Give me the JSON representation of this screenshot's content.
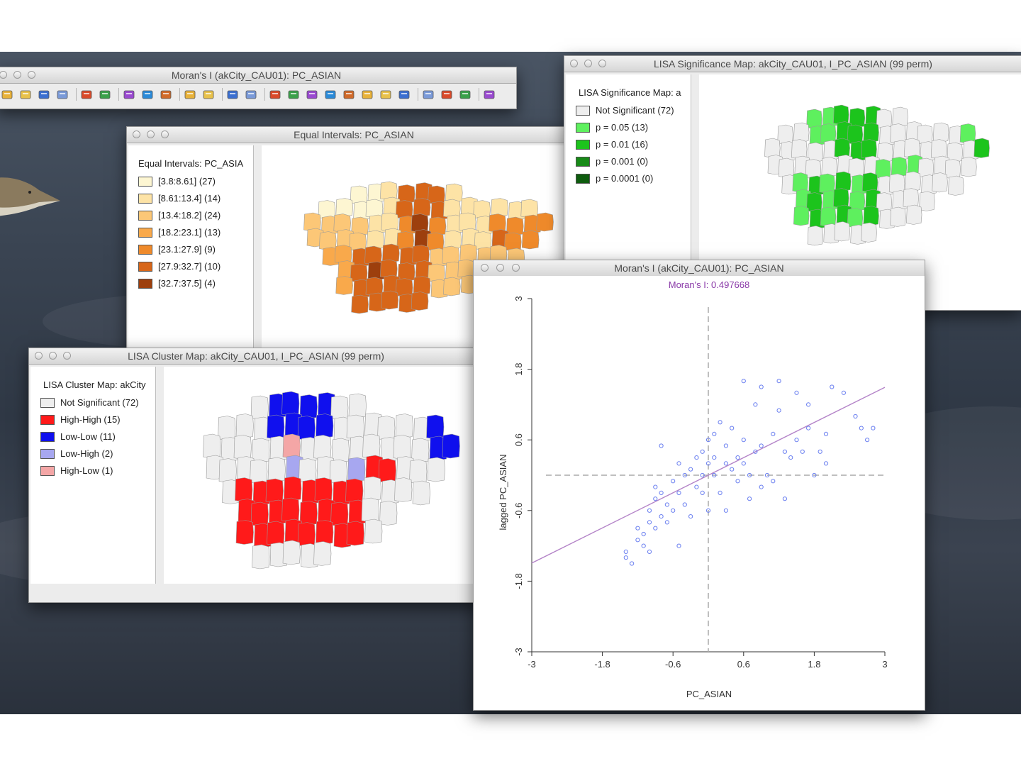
{
  "windows": {
    "toolbar_window": {
      "title": "Moran's I (akCity_CAU01): PC_ASIAN"
    },
    "equal_intervals": {
      "title": "Equal Intervals: PC_ASIAN",
      "legend_title": "Equal Intervals: PC_ASIA",
      "legend": [
        {
          "label": "[3.8:8.61] (27)",
          "color": "#fdf6d2"
        },
        {
          "label": "[8.61:13.4] (14)",
          "color": "#fde3a6"
        },
        {
          "label": "[13.4:18.2] (24)",
          "color": "#fcc777"
        },
        {
          "label": "[18.2:23.1] (13)",
          "color": "#f9a94b"
        },
        {
          "label": "[23.1:27.9] (9)",
          "color": "#ef8a2b"
        },
        {
          "label": "[27.9:32.7] (10)",
          "color": "#d76619"
        },
        {
          "label": "[32.7:37.5] (4)",
          "color": "#9d3f0d"
        }
      ]
    },
    "significance_map": {
      "title": "LISA Significance Map: akCity_CAU01, I_PC_ASIAN (99 perm)",
      "legend_title": "LISA Significance Map: a",
      "legend": [
        {
          "label": "Not Significant (72)",
          "color": "#eeeeee"
        },
        {
          "label": "p = 0.05 (13)",
          "color": "#5ef05e"
        },
        {
          "label": "p = 0.01 (16)",
          "color": "#1cc41c"
        },
        {
          "label": "p = 0.001 (0)",
          "color": "#178a17"
        },
        {
          "label": "p = 0.0001 (0)",
          "color": "#0e5c0e"
        }
      ]
    },
    "cluster_map": {
      "title": "LISA Cluster Map: akCity_CAU01, I_PC_ASIAN (99 perm)",
      "legend_title": "LISA Cluster Map: akCity",
      "legend": [
        {
          "label": "Not Significant (72)",
          "color": "#eeeeee"
        },
        {
          "label": "High-High (15)",
          "color": "#ff1a1a"
        },
        {
          "label": "Low-Low (11)",
          "color": "#1010ee"
        },
        {
          "label": "Low-High (2)",
          "color": "#a7a7f0"
        },
        {
          "label": "High-Low (1)",
          "color": "#f4a6a6"
        }
      ]
    },
    "moran_plot": {
      "title": "Moran's I (akCity_CAU01): PC_ASIAN",
      "subtitle": "Moran's I: 0.497668",
      "xlabel": "PC_ASIAN",
      "ylabel": "lagged PC_ASIAN"
    }
  },
  "toolbar_icons": [
    "open-icon",
    "folder-icon",
    "folder-2-icon",
    "save-icon",
    "table-icon",
    "table-edit-icon",
    "weights-create-icon",
    "weights-open-icon",
    "weights-edit-icon",
    "clock-icon",
    "window-icon",
    "map-icon",
    "choropleth-icon",
    "points-icon",
    "histogram-icon",
    "boxplot-icon",
    "scatter-icon",
    "bubble-icon",
    "pie-icon",
    "pcp-icon",
    "3d-icon",
    "moran-icon",
    "lisa-icon",
    "cluster-icon",
    "regression-icon"
  ],
  "chart_data": {
    "type": "scatter",
    "title": "Moran's I: 0.497668",
    "xlabel": "PC_ASIAN",
    "ylabel": "lagged PC_ASIAN",
    "xlim": [
      -3,
      3
    ],
    "ylim": [
      -3,
      3
    ],
    "xticks": [
      "-3",
      "-1.8",
      "-0.6",
      "0.6",
      "1.8",
      "3"
    ],
    "yticks": [
      "-3",
      "-1.8",
      "-0.6",
      "0.6",
      "1.8",
      "3"
    ],
    "regression_slope": 0.497668,
    "colors": {
      "points": "#6a7ff0",
      "line": "#b484c8",
      "axes": "#aaaaaa"
    },
    "points": [
      [
        -1.4,
        -1.3
      ],
      [
        -1.4,
        -1.4
      ],
      [
        -1.3,
        -1.5
      ],
      [
        -1.2,
        -1.1
      ],
      [
        -1.2,
        -0.9
      ],
      [
        -1.1,
        -1.2
      ],
      [
        -1.1,
        -1.0
      ],
      [
        -1.0,
        -0.8
      ],
      [
        -1.0,
        -1.3
      ],
      [
        -1.0,
        -0.6
      ],
      [
        -0.9,
        -0.9
      ],
      [
        -0.9,
        -0.4
      ],
      [
        -0.9,
        -0.2
      ],
      [
        -0.8,
        -0.7
      ],
      [
        -0.8,
        -0.3
      ],
      [
        -0.8,
        0.5
      ],
      [
        -0.7,
        -0.5
      ],
      [
        -0.7,
        -0.8
      ],
      [
        -0.6,
        -0.6
      ],
      [
        -0.6,
        -0.1
      ],
      [
        -0.5,
        -0.3
      ],
      [
        -0.5,
        0.2
      ],
      [
        -0.5,
        -1.2
      ],
      [
        -0.4,
        0.0
      ],
      [
        -0.4,
        -0.5
      ],
      [
        -0.3,
        0.1
      ],
      [
        -0.3,
        -0.7
      ],
      [
        -0.2,
        0.3
      ],
      [
        -0.2,
        -0.2
      ],
      [
        -0.1,
        0.4
      ],
      [
        -0.1,
        0.0
      ],
      [
        -0.1,
        -0.3
      ],
      [
        0.0,
        0.2
      ],
      [
        0.0,
        0.6
      ],
      [
        0.0,
        -0.6
      ],
      [
        0.1,
        0.3
      ],
      [
        0.1,
        0.0
      ],
      [
        0.1,
        0.7
      ],
      [
        0.2,
        -0.3
      ],
      [
        0.3,
        0.5
      ],
      [
        0.3,
        0.2
      ],
      [
        0.3,
        -0.6
      ],
      [
        0.4,
        0.1
      ],
      [
        0.4,
        0.8
      ],
      [
        0.5,
        0.3
      ],
      [
        0.5,
        -0.1
      ],
      [
        0.6,
        0.2
      ],
      [
        0.6,
        0.6
      ],
      [
        0.7,
        0.0
      ],
      [
        0.7,
        -0.4
      ],
      [
        0.8,
        1.2
      ],
      [
        0.8,
        0.4
      ],
      [
        0.9,
        1.5
      ],
      [
        0.9,
        0.5
      ],
      [
        0.9,
        -0.2
      ],
      [
        1.0,
        0.0
      ],
      [
        1.1,
        -0.1
      ],
      [
        1.1,
        0.7
      ],
      [
        1.2,
        1.1
      ],
      [
        1.3,
        -0.4
      ],
      [
        1.3,
        0.4
      ],
      [
        1.4,
        0.3
      ],
      [
        1.5,
        1.4
      ],
      [
        1.5,
        0.6
      ],
      [
        1.6,
        0.4
      ],
      [
        1.7,
        0.8
      ],
      [
        1.7,
        1.2
      ],
      [
        1.8,
        0.0
      ],
      [
        1.9,
        0.4
      ],
      [
        2.0,
        0.2
      ],
      [
        2.0,
        0.7
      ],
      [
        2.1,
        1.5
      ],
      [
        2.3,
        1.4
      ],
      [
        2.5,
        1.0
      ],
      [
        2.6,
        0.8
      ],
      [
        2.7,
        0.6
      ],
      [
        2.8,
        0.8
      ],
      [
        0.6,
        1.6
      ],
      [
        1.2,
        1.6
      ],
      [
        0.2,
        0.9
      ]
    ]
  }
}
